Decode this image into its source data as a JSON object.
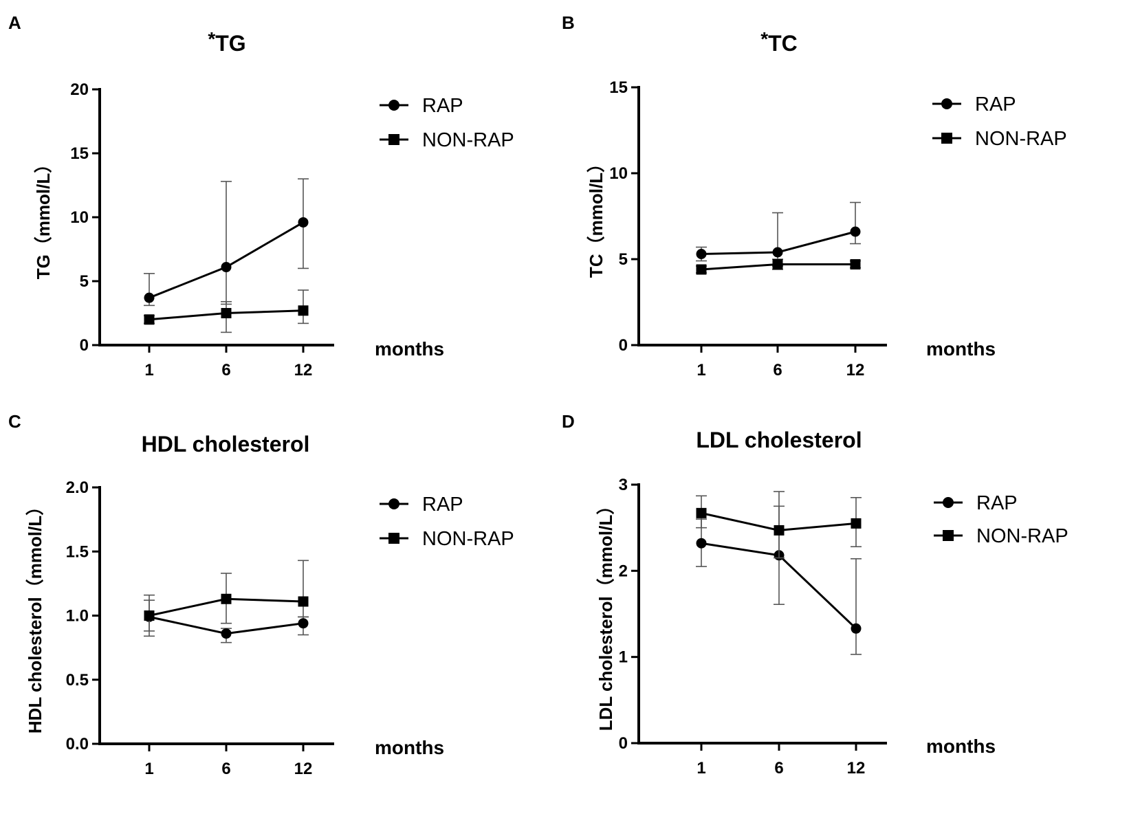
{
  "chart_data": [
    {
      "panel": "A",
      "type": "line",
      "title": "TG",
      "title_prefix": "*",
      "ylabel": "TG（mmol/L）",
      "xlabel": "months",
      "categories": [
        "1",
        "6",
        "12"
      ],
      "ylim": [
        0,
        20
      ],
      "yticks": [
        0,
        5,
        10,
        15,
        20
      ],
      "ytick_labels": [
        "0",
        "5",
        "10",
        "15",
        "20"
      ],
      "legend": [
        "RAP",
        "NON-RAP"
      ],
      "series": [
        {
          "name": "RAP",
          "marker": "circle",
          "values": [
            3.7,
            6.1,
            9.6
          ],
          "err_upper": [
            5.6,
            12.8,
            13.0
          ],
          "err_lower": [
            3.1,
            3.2,
            6.0
          ]
        },
        {
          "name": "NON-RAP",
          "marker": "square",
          "values": [
            2.0,
            2.5,
            2.7
          ],
          "err_upper": [
            2.3,
            3.4,
            4.3
          ],
          "err_lower": [
            1.7,
            1.0,
            1.7
          ]
        }
      ]
    },
    {
      "panel": "B",
      "type": "line",
      "title": "TC",
      "title_prefix": "*",
      "ylabel": "TC（mmol/L）",
      "xlabel": "months",
      "categories": [
        "1",
        "6",
        "12"
      ],
      "ylim": [
        0,
        15
      ],
      "yticks": [
        0,
        5,
        10,
        15
      ],
      "ytick_labels": [
        "0",
        "5",
        "10",
        "15"
      ],
      "legend": [
        "RAP",
        "NON-RAP"
      ],
      "series": [
        {
          "name": "RAP",
          "marker": "circle",
          "values": [
            5.3,
            5.4,
            6.6
          ],
          "err_upper": [
            5.7,
            7.7,
            8.3
          ],
          "err_lower": [
            4.9,
            4.6,
            5.9
          ]
        },
        {
          "name": "NON-RAP",
          "marker": "square",
          "values": [
            4.4,
            4.7,
            4.7
          ],
          "err_upper": [
            4.6,
            5.0,
            4.9
          ],
          "err_lower": [
            4.2,
            4.4,
            4.5
          ]
        }
      ]
    },
    {
      "panel": "C",
      "type": "line",
      "title": "HDL cholesterol",
      "title_prefix": "",
      "ylabel": "HDL cholesterol（mmol/L）",
      "xlabel": "months",
      "categories": [
        "1",
        "6",
        "12"
      ],
      "ylim": [
        0,
        2
      ],
      "yticks": [
        0,
        0.5,
        1.0,
        1.5,
        2.0
      ],
      "ytick_labels": [
        "0.0",
        "0.5",
        "1.0",
        "1.5",
        "2.0"
      ],
      "legend": [
        "RAP",
        "NON-RAP"
      ],
      "series": [
        {
          "name": "RAP",
          "marker": "circle",
          "values": [
            0.99,
            0.86,
            0.94
          ],
          "err_upper": [
            1.12,
            0.9,
            0.99
          ],
          "err_lower": [
            0.84,
            0.79,
            0.85
          ]
        },
        {
          "name": "NON-RAP",
          "marker": "square",
          "values": [
            1.0,
            1.13,
            1.11
          ],
          "err_upper": [
            1.16,
            1.33,
            1.43
          ],
          "err_lower": [
            0.88,
            0.94,
            0.99
          ]
        }
      ]
    },
    {
      "panel": "D",
      "type": "line",
      "title": "LDL cholesterol",
      "title_prefix": "",
      "ylabel": "LDL cholesterol（mmol/L）",
      "xlabel": "months",
      "categories": [
        "1",
        "6",
        "12"
      ],
      "ylim": [
        0,
        3
      ],
      "yticks": [
        0,
        1,
        2,
        3
      ],
      "ytick_labels": [
        "0",
        "1",
        "2",
        "3"
      ],
      "legend": [
        "RAP",
        "NON-RAP"
      ],
      "series": [
        {
          "name": "RAP",
          "marker": "circle",
          "values": [
            2.32,
            2.18,
            1.33
          ],
          "err_upper": [
            2.6,
            2.75,
            2.14
          ],
          "err_lower": [
            2.05,
            1.61,
            1.03
          ]
        },
        {
          "name": "NON-RAP",
          "marker": "square",
          "values": [
            2.67,
            2.47,
            2.55
          ],
          "err_upper": [
            2.87,
            2.92,
            2.85
          ],
          "err_lower": [
            2.5,
            2.15,
            2.28
          ]
        }
      ]
    }
  ]
}
